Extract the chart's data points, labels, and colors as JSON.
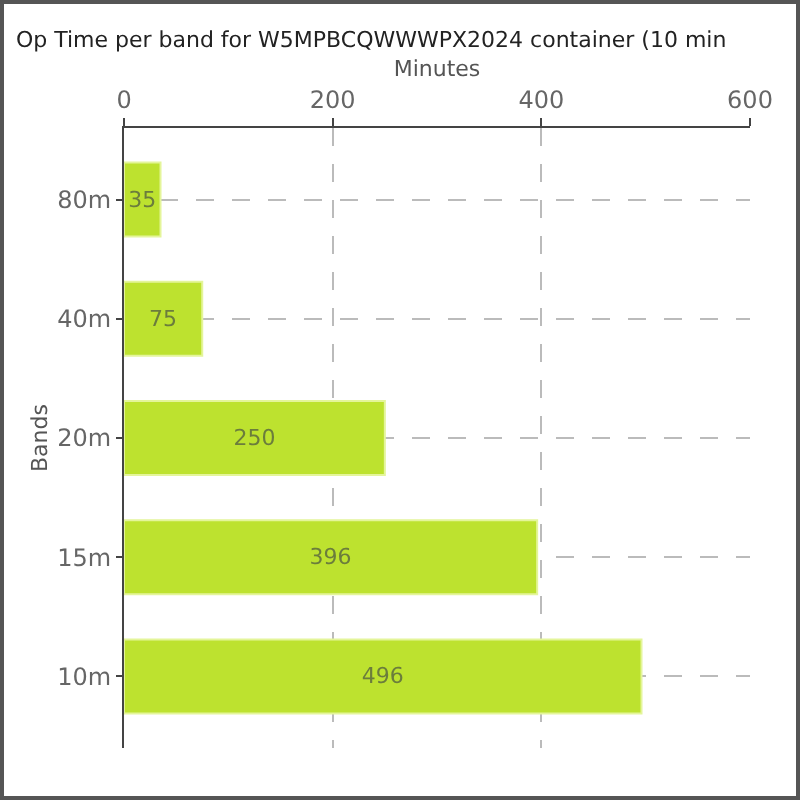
{
  "chart_data": {
    "type": "bar",
    "orientation": "horizontal",
    "title": "Op Time per band for W5MPBCQWWWPX2024 container (10 min",
    "xlabel": "Minutes",
    "ylabel": "Bands",
    "categories": [
      "80m",
      "40m",
      "20m",
      "15m",
      "10m"
    ],
    "values": [
      35,
      75,
      250,
      396,
      496
    ],
    "color": "#bde22f",
    "xlim": [
      0,
      600
    ],
    "xticks": [
      0,
      200,
      400,
      600
    ],
    "grid": true,
    "data_labels": true
  }
}
